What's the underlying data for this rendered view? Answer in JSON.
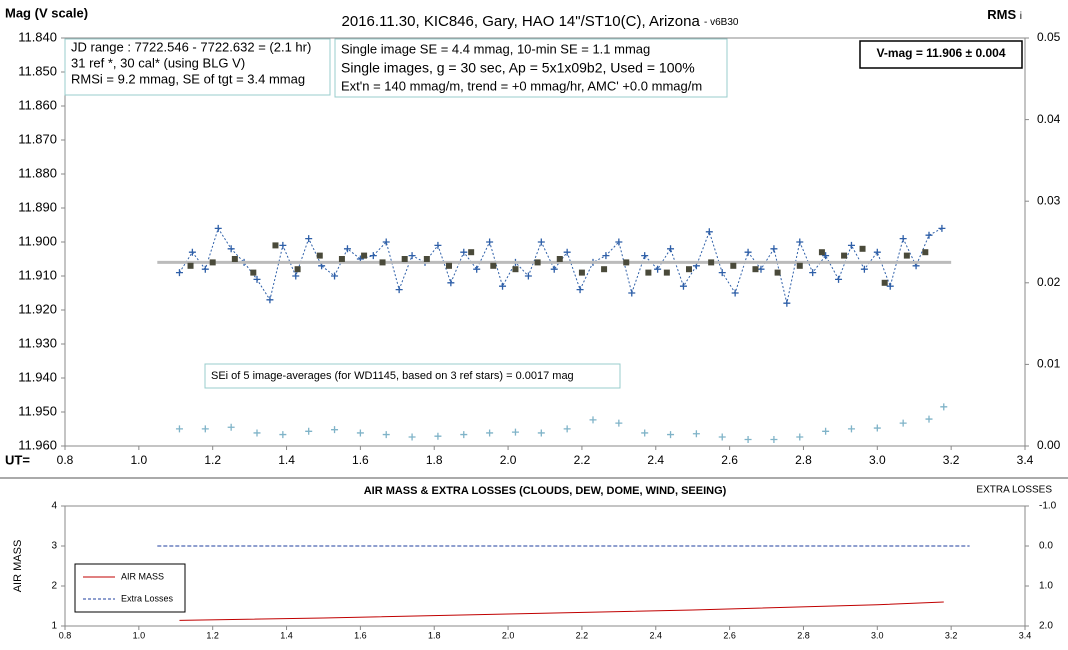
{
  "chart_data": [
    {
      "type": "line",
      "title": "2016.11.30, KIC846, Gary, HAO 14\"/ST10(C), Arizona",
      "title_note": "- v6B30",
      "ylabel": "Mag (V scale)",
      "y2label": "RMS",
      "y2label_sub": "i",
      "xlabel": "UT=",
      "xlim": [
        0.8,
        3.4
      ],
      "xticks": [
        0.8,
        {
          "value": 1.0,
          "label": "1.0"
        },
        1.2,
        1.4,
        1.6,
        1.8,
        {
          "value": 2.0,
          "label": "2.0"
        },
        2.2,
        2.4,
        2.6,
        2.8,
        {
          "value": 3.0,
          "label": "3.0"
        },
        3.2,
        3.4
      ],
      "ylim": [
        11.84,
        11.96
      ],
      "y_inverted": true,
      "yticks": [
        {
          "value": 11.84,
          "label": "11.840"
        },
        {
          "value": 11.85,
          "label": "11.850"
        },
        {
          "value": 11.86,
          "label": "11.860"
        },
        {
          "value": 11.87,
          "label": "11.870"
        },
        {
          "value": 11.88,
          "label": "11.880"
        },
        {
          "value": 11.89,
          "label": "11.890"
        },
        {
          "value": 11.9,
          "label": "11.900"
        },
        {
          "value": 11.91,
          "label": "11.910"
        },
        {
          "value": 11.92,
          "label": "11.920"
        },
        {
          "value": 11.93,
          "label": "11.930"
        },
        {
          "value": 11.94,
          "label": "11.940"
        },
        {
          "value": 11.95,
          "label": "11.950"
        },
        {
          "value": 11.96,
          "label": "11.960"
        }
      ],
      "y2lim": [
        0,
        0.05
      ],
      "y2_inverted": false,
      "y2ticks": [
        {
          "value": 0,
          "label": "0.00"
        },
        0.01,
        0.02,
        0.03,
        0.04,
        0.05
      ],
      "series": [
        {
          "color": "#2e5fa8",
          "marker": "plus",
          "line": "dotted",
          "x": [
            1.11,
            1.145,
            1.18,
            1.215,
            1.25,
            1.285,
            1.32,
            1.355,
            1.39,
            1.425,
            1.46,
            1.495,
            1.53,
            1.565,
            1.6,
            1.635,
            1.67,
            1.705,
            1.74,
            1.775,
            1.81,
            1.845,
            1.88,
            1.915,
            1.95,
            1.985,
            2.02,
            2.055,
            2.09,
            2.125,
            2.16,
            2.195,
            2.23,
            2.265,
            2.3,
            2.335,
            2.37,
            2.405,
            2.44,
            2.475,
            2.51,
            2.545,
            2.58,
            2.615,
            2.65,
            2.685,
            2.72,
            2.755,
            2.79,
            2.825,
            2.86,
            2.895,
            2.93,
            2.965,
            3.0,
            3.035,
            3.07,
            3.105,
            3.14,
            3.175
          ],
          "values": [
            11.909,
            11.903,
            11.908,
            11.896,
            11.902,
            11.906,
            11.911,
            11.917,
            11.901,
            11.91,
            11.899,
            11.907,
            11.91,
            11.902,
            11.905,
            11.904,
            11.9,
            11.914,
            11.904,
            11.906,
            11.901,
            11.912,
            11.903,
            11.908,
            11.9,
            11.913,
            11.906,
            11.91,
            11.9,
            11.908,
            11.903,
            11.914,
            11.906,
            11.904,
            11.9,
            11.915,
            11.904,
            11.908,
            11.902,
            11.913,
            11.907,
            11.897,
            11.909,
            11.915,
            11.903,
            11.908,
            11.902,
            11.918,
            11.9,
            11.909,
            11.904,
            11.911,
            11.901,
            11.908,
            11.903,
            11.913,
            11.899,
            11.907,
            11.898,
            11.896
          ]
        },
        {
          "color": "#bbbbbb",
          "marker": "none",
          "line": "solid",
          "width": 3,
          "x": [
            1.05,
            3.2
          ],
          "values": [
            11.906,
            11.906
          ]
        },
        {
          "color": "#4a4a3a",
          "marker": "square",
          "line": "none",
          "x": [
            1.14,
            1.2,
            1.26,
            1.31,
            1.37,
            1.43,
            1.49,
            1.55,
            1.61,
            1.66,
            1.72,
            1.78,
            1.84,
            1.9,
            1.96,
            2.02,
            2.08,
            2.14,
            2.2,
            2.26,
            2.32,
            2.38,
            2.43,
            2.49,
            2.55,
            2.61,
            2.67,
            2.73,
            2.79,
            2.85,
            2.91,
            2.96,
            3.02,
            3.08,
            3.13
          ],
          "values": [
            11.907,
            11.906,
            11.905,
            11.909,
            11.901,
            11.908,
            11.904,
            11.905,
            11.904,
            11.906,
            11.905,
            11.905,
            11.907,
            11.903,
            11.907,
            11.908,
            11.906,
            11.905,
            11.909,
            11.908,
            11.906,
            11.909,
            11.909,
            11.908,
            11.906,
            11.907,
            11.908,
            11.909,
            11.907,
            11.903,
            11.904,
            11.902,
            11.912,
            11.904,
            11.903
          ]
        },
        {
          "axis": "y2",
          "color": "#7fb3c8",
          "marker": "plus",
          "line": "none",
          "x": [
            1.11,
            1.18,
            1.25,
            1.32,
            1.39,
            1.46,
            1.53,
            1.6,
            1.67,
            1.74,
            1.81,
            1.88,
            1.95,
            2.02,
            2.09,
            2.16,
            2.23,
            2.3,
            2.37,
            2.44,
            2.51,
            2.58,
            2.65,
            2.72,
            2.79,
            2.86,
            2.93,
            3.0,
            3.07,
            3.14,
            3.18
          ],
          "values": [
            0.0021,
            0.0021,
            0.0023,
            0.0016,
            0.0014,
            0.0018,
            0.002,
            0.0016,
            0.0014,
            0.0011,
            0.0012,
            0.0014,
            0.0016,
            0.0017,
            0.0016,
            0.0021,
            0.0032,
            0.0028,
            0.0016,
            0.0014,
            0.0015,
            0.0011,
            0.0008,
            0.0008,
            0.0011,
            0.0018,
            0.0021,
            0.0022,
            0.0028,
            0.0033,
            0.0048
          ]
        }
      ],
      "annotations": [
        [
          "JD range  :  7722.546 - 7722.632  = (2.1 hr)",
          "31 ref *, 30 cal* (using BLG V)",
          "RMSi = 9.2 mmag, SE of tgt = 3.4 mmag"
        ],
        [
          "Single image SE = 4.4 mmag, 10-min SE = 1.1 mmag",
          "Single images, g = 30 sec, Ap = 5x1x09b2, Used = 100%",
          "Ext'n = 140 mmag/m, trend = +0 mmag/hr, AMC' +0.0 mmag/m"
        ],
        [
          "V-mag  = 11.906 ± 0.004"
        ],
        [
          "SEi of 5 image-averages (for WD1145, based on 3 ref stars) = 0.0017 mag"
        ]
      ]
    },
    {
      "type": "line",
      "title": "AIR MASS & EXTRA LOSSES (CLOUDS, DEW, DOME, WIND, SEEING)",
      "ylabel": "AIR MASS",
      "y2label": "EXTRA LOSSES",
      "xlim": [
        0.8,
        3.4
      ],
      "xticks": [
        0.8,
        {
          "value": 1.0,
          "label": "1.0"
        },
        1.2,
        1.4,
        1.6,
        1.8,
        {
          "value": 2.0,
          "label": "2.0"
        },
        2.2,
        2.4,
        2.6,
        2.8,
        {
          "value": 3.0,
          "label": "3.0"
        },
        3.2,
        3.4
      ],
      "ylim": [
        1,
        4
      ],
      "y_inverted": false,
      "yticks": [
        1,
        2,
        3,
        4
      ],
      "y2lim": [
        -1,
        2
      ],
      "y2_inverted": true,
      "y2ticks": [
        {
          "value": -1,
          "label": "-1.0"
        },
        {
          "value": 0,
          "label": "0.0"
        },
        {
          "value": 1,
          "label": "1.0"
        },
        {
          "value": 2,
          "label": "2.0"
        }
      ],
      "legend": "lower-left",
      "series": [
        {
          "name": "AIR MASS",
          "color": "#c00000",
          "marker": "none",
          "line": "solid",
          "x": [
            1.11,
            1.5,
            2.0,
            2.5,
            3.0,
            3.18
          ],
          "values": [
            1.14,
            1.2,
            1.3,
            1.4,
            1.53,
            1.6
          ]
        },
        {
          "name": "Extra Losses",
          "axis": "y2",
          "color": "#1f3f9f",
          "marker": "none",
          "line": "dashed",
          "x": [
            1.05,
            3.25
          ],
          "values": [
            0,
            0
          ]
        }
      ]
    }
  ]
}
